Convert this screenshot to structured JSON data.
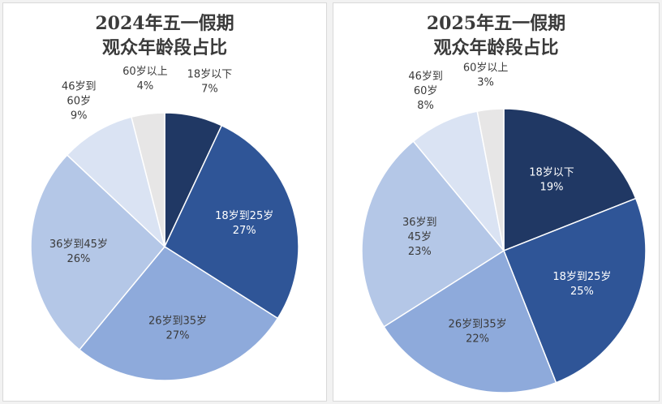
{
  "chart_data": [
    {
      "type": "pie",
      "title_line1": "2024年五一假期",
      "title_line2": "观众年龄段占比",
      "slices": [
        {
          "lines": [
            "18岁以下"
          ],
          "pct": "7%",
          "value": 7,
          "color": "#203864",
          "text_color": "#3a3a3a",
          "outside": true
        },
        {
          "lines": [
            "18岁到25岁"
          ],
          "pct": "27%",
          "value": 27,
          "color": "#2f5597",
          "text_color": "#ffffff",
          "outside": false
        },
        {
          "lines": [
            "26岁到35岁"
          ],
          "pct": "27%",
          "value": 27,
          "color": "#8eaadb",
          "text_color": "#3a3a3a",
          "outside": false
        },
        {
          "lines": [
            "36岁到45岁"
          ],
          "pct": "26%",
          "value": 26,
          "color": "#b4c7e7",
          "text_color": "#3a3a3a",
          "outside": false
        },
        {
          "lines": [
            "46岁到",
            "60岁"
          ],
          "pct": "9%",
          "value": 9,
          "color": "#dae3f3",
          "text_color": "#3a3a3a",
          "outside": true
        },
        {
          "lines": [
            "60岁以上"
          ],
          "pct": "4%",
          "value": 4,
          "color": "#e7e6e6",
          "text_color": "#3a3a3a",
          "outside": true
        }
      ]
    },
    {
      "type": "pie",
      "title_line1": "2025年五一假期",
      "title_line2": "观众年龄段占比",
      "slices": [
        {
          "lines": [
            "18岁以下"
          ],
          "pct": "19%",
          "value": 19,
          "color": "#203864",
          "text_color": "#ffffff",
          "outside": false
        },
        {
          "lines": [
            "18岁到25岁"
          ],
          "pct": "25%",
          "value": 25,
          "color": "#2f5597",
          "text_color": "#ffffff",
          "outside": false
        },
        {
          "lines": [
            "26岁到35岁"
          ],
          "pct": "22%",
          "value": 22,
          "color": "#8eaadb",
          "text_color": "#3a3a3a",
          "outside": false
        },
        {
          "lines": [
            "36岁到",
            "45岁"
          ],
          "pct": "23%",
          "value": 23,
          "color": "#b4c7e7",
          "text_color": "#3a3a3a",
          "outside": false
        },
        {
          "lines": [
            "46岁到",
            "60岁"
          ],
          "pct": "8%",
          "value": 8,
          "color": "#dae3f3",
          "text_color": "#3a3a3a",
          "outside": true
        },
        {
          "lines": [
            "60岁以上"
          ],
          "pct": "3%",
          "value": 3,
          "color": "#e7e6e6",
          "text_color": "#3a3a3a",
          "outside": true
        }
      ]
    }
  ]
}
